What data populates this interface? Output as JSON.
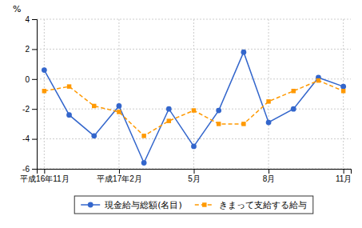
{
  "chart_data": {
    "type": "line",
    "y_label": "%",
    "categories": [
      "平成16年11月",
      null,
      null,
      "平成17年2月",
      null,
      null,
      "5月",
      null,
      null,
      "8月",
      null,
      null,
      "11月"
    ],
    "series": [
      {
        "name": "現金給与総額(名目)",
        "color": "#3366CC",
        "marker": "circle",
        "line_style": "solid",
        "values": [
          0.6,
          -2.4,
          -3.8,
          -1.8,
          -5.6,
          -2.0,
          -4.5,
          -2.1,
          1.8,
          -2.9,
          -2.0,
          0.1,
          -0.5
        ]
      },
      {
        "name": "きまって支給する給与",
        "color": "#FF9900",
        "marker": "square",
        "line_style": "dashed",
        "values": [
          -0.8,
          -0.5,
          -1.8,
          -2.2,
          -3.8,
          -2.8,
          -2.1,
          -3.0,
          -3.0,
          -1.5,
          -0.8,
          -0.1,
          -0.8
        ]
      }
    ],
    "ylim": [
      -6,
      4
    ],
    "yticks": [
      -6,
      -4,
      -2,
      0,
      2,
      4
    ],
    "grid": true,
    "legend": "bottom"
  }
}
